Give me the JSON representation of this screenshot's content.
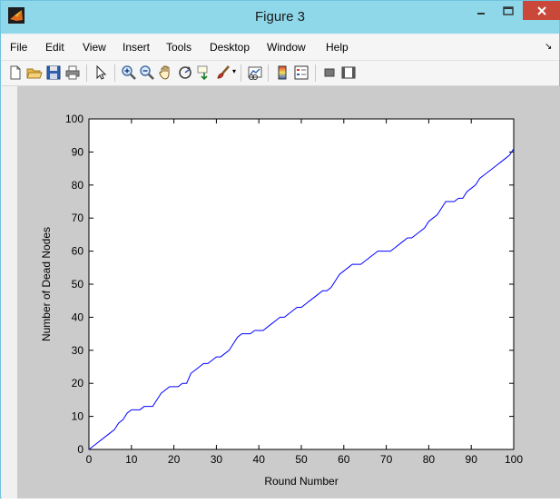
{
  "window": {
    "title": "Figure 3",
    "accent_color": "#8fd8ea",
    "close_color": "#c9483a"
  },
  "menubar": {
    "items": [
      "File",
      "Edit",
      "View",
      "Insert",
      "Tools",
      "Desktop",
      "Window",
      "Help"
    ]
  },
  "toolbar": {
    "icons": [
      "new-figure-icon",
      "open-file-icon",
      "save-icon",
      "print-icon",
      "pointer-icon",
      "zoom-in-icon",
      "zoom-out-icon",
      "pan-hand-icon",
      "rotate-3d-icon",
      "data-cursor-icon",
      "brush-icon",
      "link-plot-icon",
      "colorbar-icon",
      "legend-icon",
      "hide-plot-tools-icon",
      "show-plot-tools-icon"
    ]
  },
  "chart_data": {
    "type": "line",
    "title": "",
    "xlabel": "Round Number",
    "ylabel": "Number of Dead Nodes",
    "xlim": [
      0,
      100
    ],
    "ylim": [
      0,
      100
    ],
    "xticks": [
      0,
      10,
      20,
      30,
      40,
      50,
      60,
      70,
      80,
      90,
      100
    ],
    "yticks": [
      0,
      10,
      20,
      30,
      40,
      50,
      60,
      70,
      80,
      90,
      100
    ],
    "grid": false,
    "series": [
      {
        "color": "#0000ff",
        "x": [
          0,
          1,
          2,
          3,
          4,
          5,
          6,
          7,
          8,
          9,
          10,
          11,
          12,
          13,
          14,
          15,
          16,
          17,
          18,
          19,
          20,
          21,
          22,
          23,
          24,
          25,
          26,
          27,
          28,
          29,
          30,
          31,
          32,
          33,
          34,
          35,
          36,
          37,
          38,
          39,
          40,
          41,
          42,
          43,
          44,
          45,
          46,
          47,
          48,
          49,
          50,
          51,
          52,
          53,
          54,
          55,
          56,
          57,
          58,
          59,
          60,
          61,
          62,
          63,
          64,
          65,
          66,
          67,
          68,
          69,
          70,
          71,
          72,
          73,
          74,
          75,
          76,
          77,
          78,
          79,
          80,
          81,
          82,
          83,
          84,
          85,
          86,
          87,
          88,
          89,
          90,
          91,
          92,
          93,
          94,
          95,
          96,
          97,
          98,
          99,
          100
        ],
        "y": [
          0,
          1,
          2,
          3,
          4,
          5,
          6,
          8,
          9,
          11,
          12,
          12,
          12,
          13,
          13,
          13,
          15,
          17,
          18,
          19,
          19,
          19,
          20,
          20,
          23,
          24,
          25,
          26,
          26,
          27,
          28,
          28,
          29,
          30,
          32,
          34,
          35,
          35,
          35,
          36,
          36,
          36,
          37,
          38,
          39,
          40,
          40,
          41,
          42,
          43,
          43,
          44,
          45,
          46,
          47,
          48,
          48,
          49,
          51,
          53,
          54,
          55,
          56,
          56,
          56,
          57,
          58,
          59,
          60,
          60,
          60,
          60,
          61,
          62,
          63,
          64,
          64,
          65,
          66,
          67,
          69,
          70,
          71,
          73,
          75,
          75,
          75,
          76,
          76,
          78,
          79,
          80,
          82,
          83,
          84,
          85,
          86,
          87,
          88,
          89,
          91
        ]
      }
    ]
  }
}
